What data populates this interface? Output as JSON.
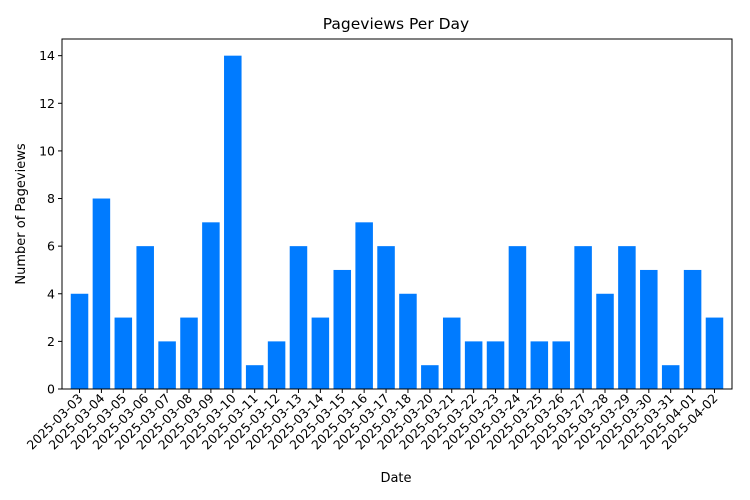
{
  "chart_data": {
    "type": "bar",
    "title": "Pageviews Per Day",
    "xlabel": "Date",
    "ylabel": "Number of Pageviews",
    "ylim": [
      0,
      14.7
    ],
    "yticks": [
      0,
      2,
      4,
      6,
      8,
      10,
      12,
      14
    ],
    "bar_color": "#007bff",
    "grid": false,
    "categories": [
      "2025-03-03",
      "2025-03-04",
      "2025-03-05",
      "2025-03-06",
      "2025-03-07",
      "2025-03-08",
      "2025-03-09",
      "2025-03-10",
      "2025-03-11",
      "2025-03-12",
      "2025-03-13",
      "2025-03-14",
      "2025-03-15",
      "2025-03-16",
      "2025-03-17",
      "2025-03-18",
      "2025-03-20",
      "2025-03-21",
      "2025-03-22",
      "2025-03-23",
      "2025-03-24",
      "2025-03-25",
      "2025-03-26",
      "2025-03-27",
      "2025-03-28",
      "2025-03-29",
      "2025-03-30",
      "2025-03-31",
      "2025-04-01",
      "2025-04-02"
    ],
    "values": [
      4,
      8,
      3,
      6,
      2,
      3,
      7,
      14,
      1,
      2,
      6,
      3,
      5,
      7,
      6,
      4,
      1,
      3,
      2,
      2,
      6,
      2,
      2,
      6,
      4,
      6,
      5,
      1,
      5,
      3
    ]
  }
}
